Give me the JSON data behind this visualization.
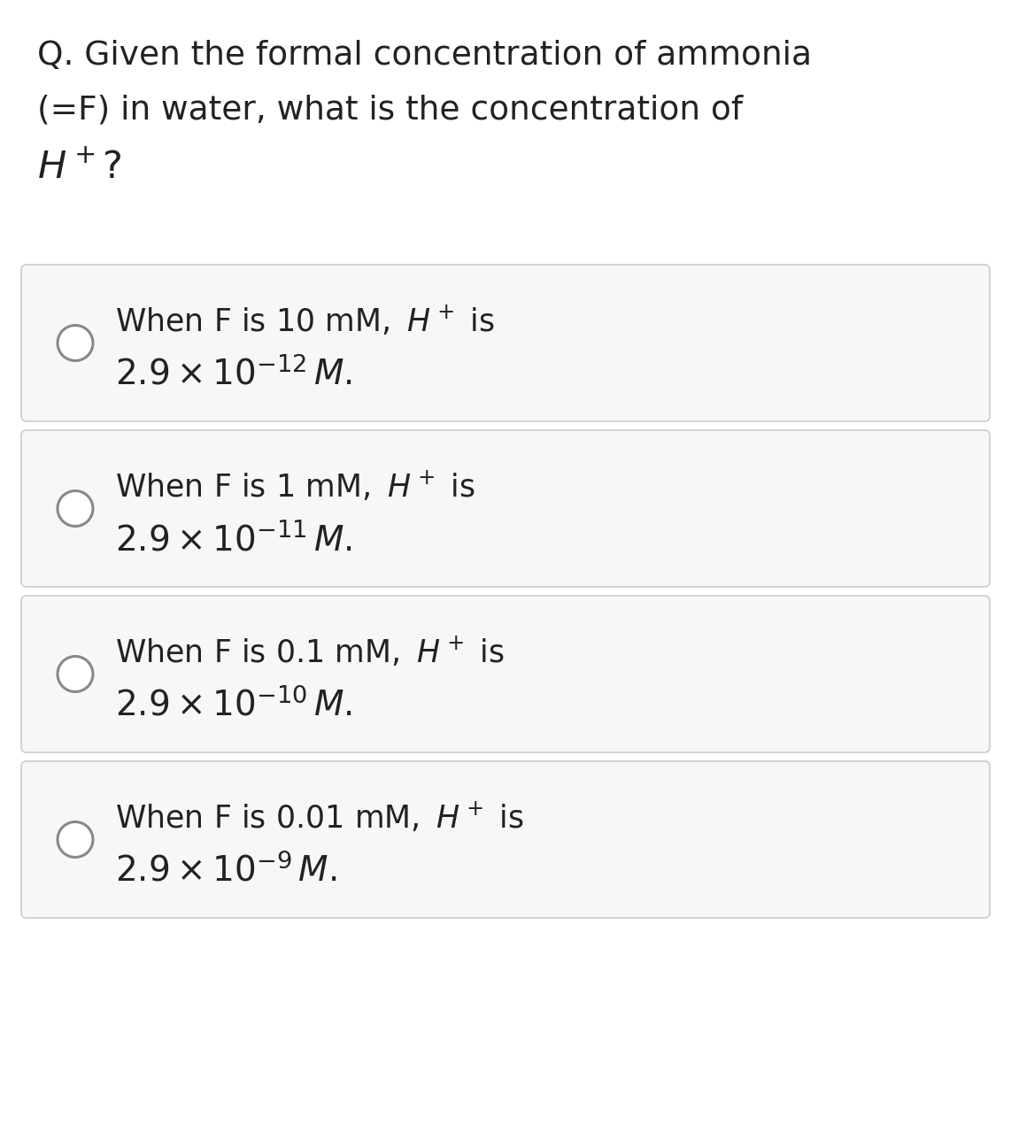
{
  "background_color": "#ffffff",
  "question_line1": "Q. Given the formal concentration of ammonia",
  "question_line2": "(=F) in water, what is the concentration of",
  "options": [
    {
      "F_value": "10 mM",
      "exponent": "-12"
    },
    {
      "F_value": "1 mM",
      "exponent": "-11"
    },
    {
      "F_value": "0.1 mM",
      "exponent": "-10"
    },
    {
      "F_value": "0.01 mM",
      "exponent": "-9"
    }
  ],
  "box_bg": "#f7f7f7",
  "box_border": "#cccccc",
  "text_color": "#222222",
  "circle_color": "#888888",
  "fig_width": 11.42,
  "fig_height": 12.8,
  "dpi": 100
}
